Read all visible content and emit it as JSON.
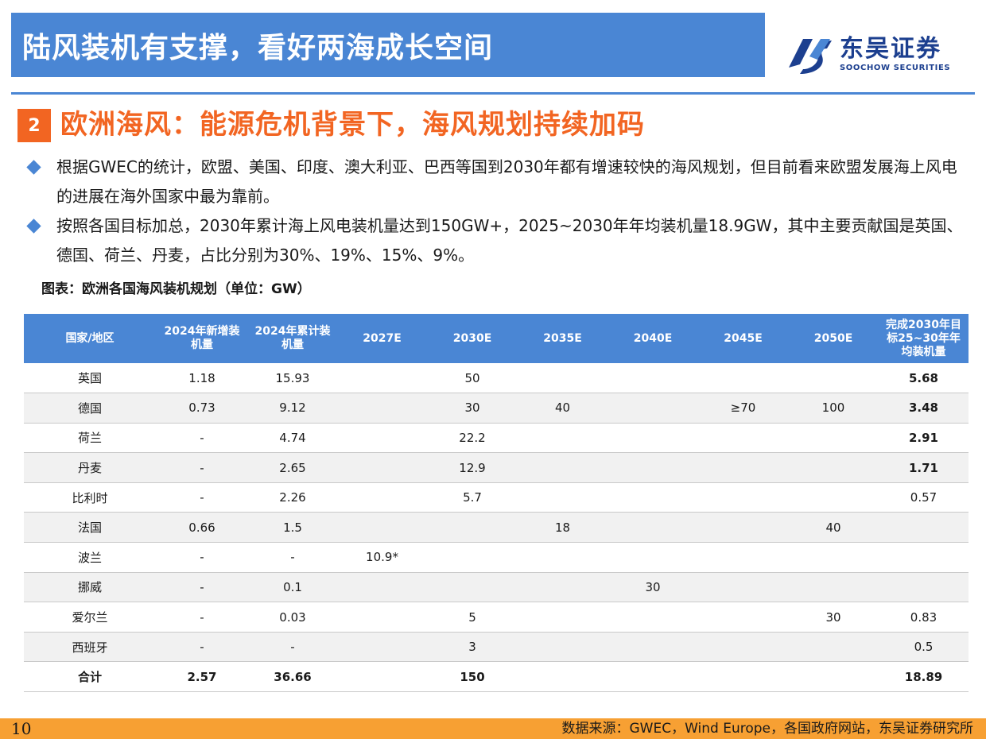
{
  "header": {
    "title": "陆风装机有支撑，看好两海成长空间",
    "logo_cn": "东吴证券",
    "logo_en": "SOOCHOW SECURITIES",
    "accent_color": "#4a86d4"
  },
  "section": {
    "number": "2",
    "title": "欧洲海风：能源危机背景下，海风规划持续加码",
    "color": "#f26522"
  },
  "bullets": [
    "根据GWEC的统计，欧盟、美国、印度、澳大利亚、巴西等国到2030年都有增速较快的海风规划，但目前看来欧盟发展海上风电的进展在海外国家中最为靠前。",
    "按照各国目标加总，2030年累计海上风电装机量达到150GW+，2025~2030年年均装机量18.9GW，其中主要贡献国是英国、德国、荷兰、丹麦，占比分别为30%、19%、15%、9%。"
  ],
  "table": {
    "caption": "图表：欧洲各国海风装机规划（单位：GW）",
    "headers": [
      "国家/地区",
      "2024年新增装机量",
      "2024年累计装机量",
      "2027E",
      "2030E",
      "2035E",
      "2040E",
      "2045E",
      "2050E",
      "完成2030年目标25~30年年均装机量"
    ],
    "rows": [
      [
        "英国",
        "1.18",
        "15.93",
        "",
        "50",
        "",
        "",
        "",
        "",
        "5.68"
      ],
      [
        "德国",
        "0.73",
        "9.12",
        "",
        "30",
        "40",
        "",
        "≥70",
        "100",
        "3.48"
      ],
      [
        "荷兰",
        "-",
        "4.74",
        "",
        "22.2",
        "",
        "",
        "",
        "",
        "2.91"
      ],
      [
        "丹麦",
        "-",
        "2.65",
        "",
        "12.9",
        "",
        "",
        "",
        "",
        "1.71"
      ],
      [
        "比利时",
        "-",
        "2.26",
        "",
        "5.7",
        "",
        "",
        "",
        "",
        "0.57"
      ],
      [
        "法国",
        "0.66",
        "1.5",
        "",
        "",
        "18",
        "",
        "",
        "40",
        ""
      ],
      [
        "波兰",
        "-",
        "-",
        "10.9*",
        "",
        "",
        "",
        "",
        "",
        ""
      ],
      [
        "挪威",
        "-",
        "0.1",
        "",
        "",
        "",
        "30",
        "",
        "",
        ""
      ],
      [
        "爱尔兰",
        "-",
        "0.03",
        "",
        "5",
        "",
        "",
        "",
        "30",
        "0.83"
      ],
      [
        "西班牙",
        "-",
        "-",
        "",
        "3",
        "",
        "",
        "",
        "",
        "0.5"
      ]
    ],
    "total": [
      "合计",
      "2.57",
      "36.66",
      "",
      "150",
      "",
      "",
      "",
      "",
      "18.89"
    ],
    "bold_last_col_rows": [
      0,
      1,
      2,
      3
    ]
  },
  "footer": {
    "page": "10",
    "source": "数据来源：GWEC，Wind Europe，各国政府网站，东吴证券研究所",
    "color": "#f7a033"
  }
}
